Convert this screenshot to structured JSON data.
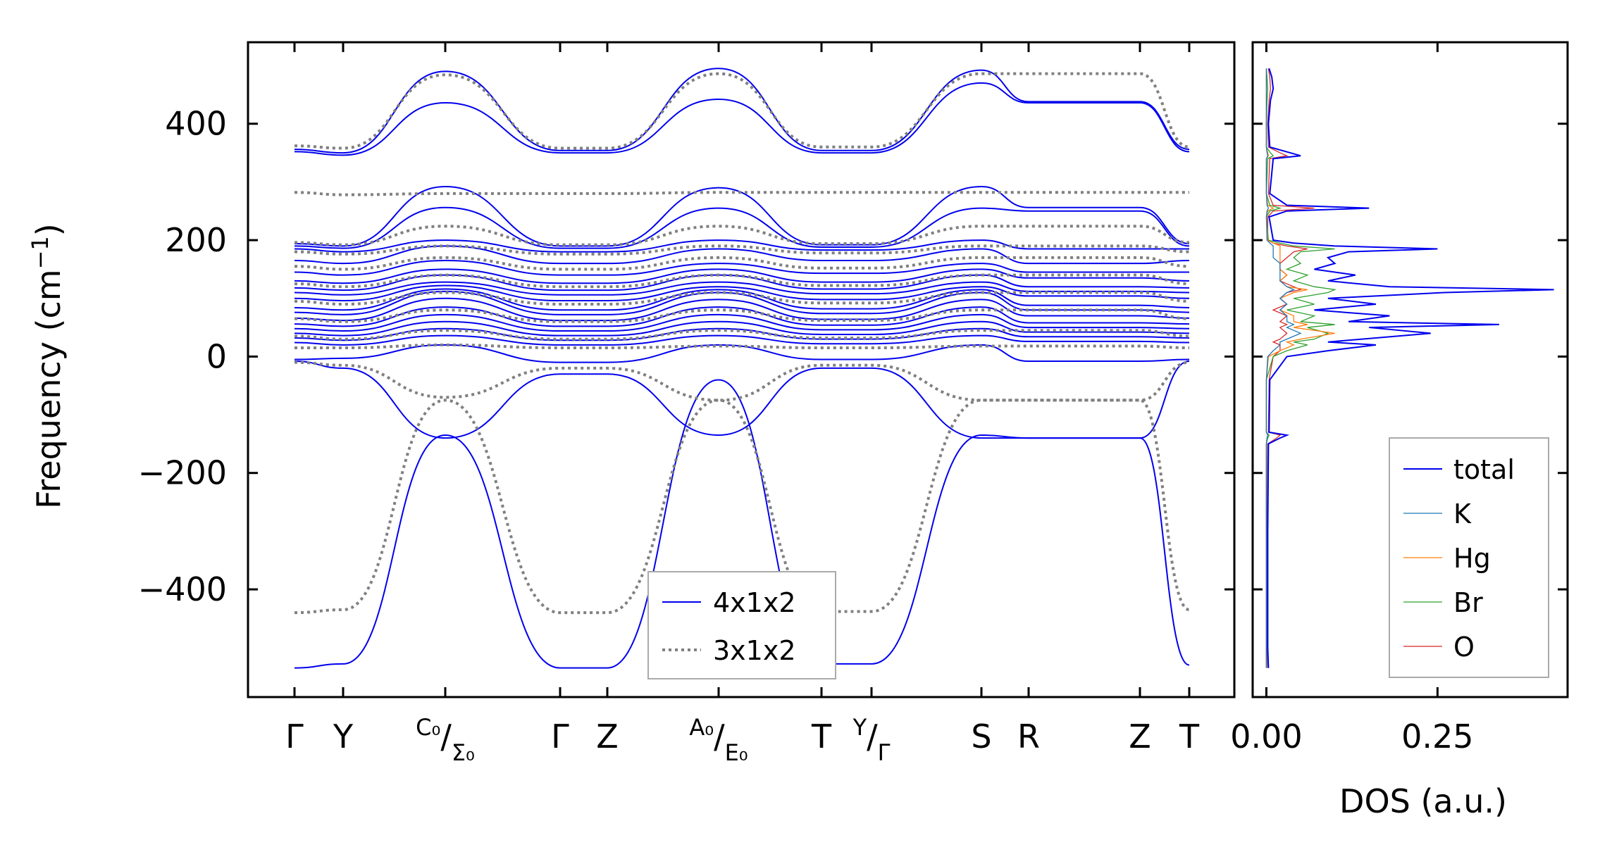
{
  "chart_data": [
    {
      "type": "line",
      "ylabel_main": "Frequency (cm",
      "ylabel_exp": "−1",
      "ylabel_close": ")",
      "ylim": [
        -585,
        540
      ],
      "yticks": [
        -400,
        -200,
        0,
        200,
        400
      ],
      "ytick_labels": [
        "−400",
        "−200",
        "0",
        "200",
        "400"
      ],
      "xtick_labels": [
        {
          "kind": "plain",
          "text": "Γ"
        },
        {
          "kind": "plain",
          "text": "Y"
        },
        {
          "kind": "split",
          "left": "C₀",
          "slash": "/",
          "right": "Σ₀"
        },
        {
          "kind": "plain",
          "text": "Γ"
        },
        {
          "kind": "plain",
          "text": "Z"
        },
        {
          "kind": "split",
          "left": "A₀",
          "slash": "/",
          "right": "E₀"
        },
        {
          "kind": "plain",
          "text": "T"
        },
        {
          "kind": "split",
          "left": "Y",
          "slash": "/",
          "right": "Γ"
        },
        {
          "kind": "plain",
          "text": "S"
        },
        {
          "kind": "plain",
          "text": "R"
        },
        {
          "kind": "plain",
          "text": "Z"
        },
        {
          "kind": "plain",
          "text": "T"
        }
      ],
      "x": [
        0,
        1,
        2,
        3,
        4,
        5,
        6,
        7,
        8,
        9,
        10,
        11
      ],
      "series": [
        {
          "name": "4x1x2",
          "style": "solid",
          "color": "#0000ee",
          "bands": [
            [
              356,
              350,
              490,
              354,
              354,
              495,
              354,
              354,
              492,
              438,
              438,
              356
            ],
            [
              352,
              346,
              436,
              350,
              350,
              442,
              350,
              350,
              470,
              436,
              436,
              352
            ],
            [
              194,
              190,
              292,
              190,
              190,
              290,
              192,
              192,
              292,
              256,
              256,
              194
            ],
            [
              190,
              186,
              256,
              186,
              186,
              255,
              188,
              188,
              255,
              250,
              250,
              190
            ],
            [
              185,
              180,
              200,
              180,
              180,
              200,
              183,
              183,
              200,
              185,
              185,
              185
            ],
            [
              165,
              160,
              190,
              160,
              160,
              185,
              165,
              165,
              185,
              160,
              160,
              165
            ],
            [
              145,
              140,
              165,
              140,
              140,
              160,
              143,
              143,
              160,
              145,
              145,
              145
            ],
            [
              130,
              126,
              150,
              126,
              126,
              150,
              128,
              128,
              150,
              135,
              135,
              130
            ],
            [
              118,
              114,
              140,
              114,
              114,
              140,
              116,
              116,
              140,
              120,
              120,
              118
            ],
            [
              110,
              106,
              128,
              106,
              106,
              128,
              108,
              108,
              128,
              112,
              112,
              110
            ],
            [
              100,
              96,
              122,
              96,
              96,
              120,
              98,
              98,
              120,
              104,
              104,
              100
            ],
            [
              84,
              80,
              116,
              80,
              80,
              115,
              82,
              82,
              115,
              88,
              88,
              84
            ],
            [
              76,
              72,
              112,
              72,
              72,
              110,
              74,
              74,
              110,
              80,
              80,
              76
            ],
            [
              66,
              62,
              100,
              62,
              62,
              98,
              64,
              64,
              98,
              70,
              70,
              66
            ],
            [
              56,
              52,
              85,
              52,
              52,
              85,
              54,
              54,
              85,
              58,
              58,
              56
            ],
            [
              48,
              44,
              72,
              44,
              44,
              72,
              46,
              46,
              72,
              50,
              50,
              48
            ],
            [
              40,
              36,
              60,
              36,
              36,
              60,
              38,
              38,
              60,
              42,
              42,
              40
            ],
            [
              32,
              28,
              48,
              28,
              28,
              48,
              30,
              30,
              48,
              34,
              34,
              32
            ],
            [
              24,
              20,
              36,
              20,
              20,
              36,
              22,
              22,
              36,
              26,
              26,
              24
            ],
            [
              -5,
              -3,
              20,
              -10,
              -10,
              20,
              -5,
              -5,
              20,
              -8,
              -8,
              -5
            ],
            [
              -8,
              -20,
              -140,
              -30,
              -30,
              -135,
              -20,
              -20,
              -140,
              -140,
              -140,
              -8
            ],
            [
              -535,
              -528,
              -135,
              -535,
              -535,
              -40,
              -528,
              -528,
              -135,
              -140,
              -140,
              -530
            ]
          ]
        },
        {
          "name": "3x1x2",
          "style": "dotted",
          "color": "#808080",
          "bands": [
            [
              362,
              358,
              484,
              358,
              358,
              486,
              360,
              360,
              486,
              486,
              486,
              360
            ],
            [
              282,
              278,
              280,
              280,
              280,
              282,
              282,
              282,
              282,
              282,
              282,
              282
            ],
            [
              196,
              192,
              224,
              192,
              192,
              224,
              194,
              194,
              224,
              224,
              224,
              196
            ],
            [
              180,
              176,
              190,
              176,
              176,
              190,
              178,
              178,
              190,
              190,
              190,
              180
            ],
            [
              155,
              150,
              170,
              150,
              150,
              170,
              152,
              152,
              170,
              170,
              170,
              155
            ],
            [
              125,
              120,
              140,
              120,
              120,
              140,
              122,
              122,
              140,
              140,
              140,
              125
            ],
            [
              95,
              90,
              110,
              90,
              90,
              110,
              92,
              92,
              110,
              110,
              110,
              95
            ],
            [
              65,
              60,
              80,
              60,
              60,
              80,
              62,
              62,
              80,
              80,
              80,
              65
            ],
            [
              35,
              30,
              45,
              30,
              30,
              45,
              32,
              32,
              45,
              45,
              45,
              35
            ],
            [
              15,
              15,
              20,
              15,
              15,
              18,
              15,
              15,
              18,
              18,
              18,
              15
            ],
            [
              -10,
              -15,
              -70,
              -20,
              -20,
              -75,
              -15,
              -15,
              -75,
              -75,
              -75,
              -10
            ],
            [
              -440,
              -435,
              -75,
              -440,
              -440,
              -75,
              -438,
              -438,
              -75,
              -75,
              -75,
              -435
            ]
          ]
        }
      ],
      "legend": {
        "position": "lower-center",
        "entries": [
          "4x1x2",
          "3x1x2"
        ]
      }
    },
    {
      "type": "line",
      "xlabel": "DOS (a.u.)",
      "xlim": [
        -0.02,
        0.44
      ],
      "xticks": [
        0.0,
        0.25
      ],
      "xtick_labels": [
        "0.00",
        "0.25"
      ],
      "ylim": [
        -585,
        540
      ],
      "frequency": [
        -535,
        -500,
        -300,
        -150,
        -140,
        -135,
        -130,
        -40,
        0,
        10,
        20,
        25,
        30,
        40,
        50,
        55,
        60,
        70,
        80,
        90,
        100,
        110,
        115,
        120,
        130,
        140,
        150,
        160,
        170,
        180,
        185,
        190,
        195,
        200,
        240,
        250,
        255,
        260,
        280,
        340,
        345,
        350,
        360,
        400,
        440,
        460,
        480,
        495
      ],
      "series": [
        {
          "name": "total",
          "color": "#0000ee",
          "values": [
            0.003,
            0.002,
            0.002,
            0.003,
            0.02,
            0.03,
            0.004,
            0.005,
            0.03,
            0.09,
            0.16,
            0.09,
            0.14,
            0.24,
            0.15,
            0.34,
            0.12,
            0.18,
            0.07,
            0.16,
            0.09,
            0.26,
            0.42,
            0.18,
            0.09,
            0.13,
            0.07,
            0.1,
            0.09,
            0.12,
            0.25,
            0.1,
            0.04,
            0.01,
            0.004,
            0.03,
            0.15,
            0.03,
            0.005,
            0.01,
            0.05,
            0.035,
            0.005,
            0.003,
            0.006,
            0.01,
            0.008,
            0.004
          ]
        },
        {
          "name": "K",
          "color": "#1f77b4",
          "values": [
            0.0,
            0.0,
            0.0,
            0.0,
            0.001,
            0.002,
            0.0,
            0.0,
            0.002,
            0.01,
            0.02,
            0.02,
            0.03,
            0.05,
            0.03,
            0.04,
            0.03,
            0.03,
            0.02,
            0.03,
            0.02,
            0.03,
            0.04,
            0.03,
            0.02,
            0.02,
            0.02,
            0.02,
            0.01,
            0.01,
            0.01,
            0.01,
            0.005,
            0.001,
            0.0,
            0.001,
            0.003,
            0.001,
            0.0,
            0.0,
            0.002,
            0.001,
            0.0,
            0.0,
            0.0,
            0.0,
            0.0,
            0.0
          ]
        },
        {
          "name": "Hg",
          "color": "#ff7f0e",
          "values": [
            0.0,
            0.0,
            0.0,
            0.0,
            0.001,
            0.002,
            0.0,
            0.0,
            0.003,
            0.02,
            0.04,
            0.03,
            0.05,
            0.1,
            0.04,
            0.06,
            0.04,
            0.04,
            0.02,
            0.03,
            0.02,
            0.04,
            0.06,
            0.03,
            0.02,
            0.03,
            0.02,
            0.02,
            0.02,
            0.02,
            0.02,
            0.02,
            0.01,
            0.002,
            0.0,
            0.002,
            0.01,
            0.002,
            0.0,
            0.0,
            0.003,
            0.002,
            0.0,
            0.0,
            0.0,
            0.0,
            0.0,
            0.0
          ]
        },
        {
          "name": "Br",
          "color": "#2ca02c",
          "values": [
            0.0,
            0.0,
            0.0,
            0.0,
            0.002,
            0.004,
            0.0,
            0.0,
            0.01,
            0.03,
            0.06,
            0.04,
            0.07,
            0.09,
            0.06,
            0.1,
            0.05,
            0.07,
            0.03,
            0.07,
            0.04,
            0.09,
            0.1,
            0.07,
            0.04,
            0.06,
            0.03,
            0.05,
            0.04,
            0.05,
            0.1,
            0.04,
            0.02,
            0.003,
            0.0,
            0.005,
            0.02,
            0.005,
            0.0,
            0.002,
            0.01,
            0.006,
            0.0,
            0.0,
            0.001,
            0.002,
            0.001,
            0.0
          ]
        },
        {
          "name": "O",
          "color": "#d62728",
          "values": [
            0.002,
            0.001,
            0.001,
            0.002,
            0.015,
            0.02,
            0.003,
            0.004,
            0.01,
            0.02,
            0.02,
            0.01,
            0.02,
            0.03,
            0.02,
            0.03,
            0.02,
            0.03,
            0.01,
            0.03,
            0.02,
            0.03,
            0.05,
            0.04,
            0.02,
            0.03,
            0.02,
            0.02,
            0.03,
            0.04,
            0.06,
            0.03,
            0.01,
            0.002,
            0.002,
            0.01,
            0.07,
            0.01,
            0.003,
            0.005,
            0.03,
            0.02,
            0.003,
            0.002,
            0.004,
            0.006,
            0.005,
            0.003
          ]
        }
      ],
      "legend": {
        "position": "lower-right",
        "entries": [
          "total",
          "K",
          "Hg",
          "Br",
          "O"
        ]
      }
    }
  ]
}
